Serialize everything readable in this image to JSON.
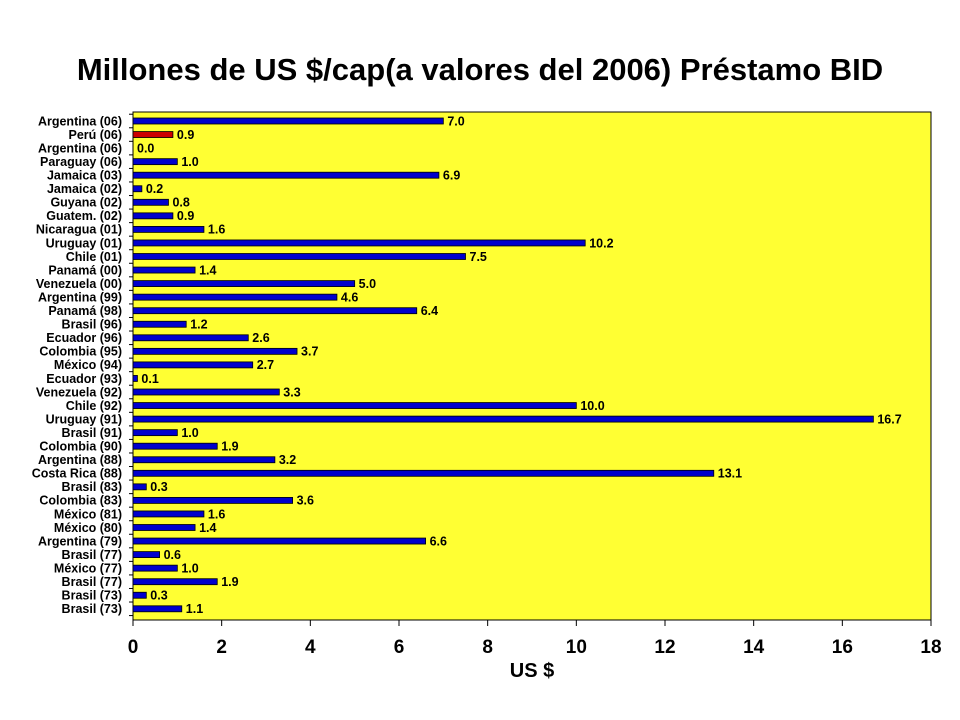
{
  "chart_data": {
    "type": "bar",
    "orientation": "horizontal",
    "title": "Millones de US $/cap(a valores del 2006) Préstamo BID",
    "xlabel": "US $",
    "ylabel": "",
    "xlim": [
      0,
      18
    ],
    "xticks": [
      "0",
      "2",
      "4",
      "6",
      "8",
      "10",
      "12",
      "14",
      "16",
      "18"
    ],
    "grid": false,
    "plot_background": "#ffff33",
    "bar_color": "#0000cc",
    "highlight_color": "#cc0000",
    "categories": [
      "Argentina (06)",
      "Perú (06)",
      "Argentina (06)",
      "Paraguay (06)",
      "Jamaica (03)",
      "Jamaica (02)",
      "Guyana (02)",
      "Guatem. (02)",
      "Nicaragua (01)",
      "Uruguay (01)",
      "Chile (01)",
      "Panamá (00)",
      "Venezuela (00)",
      "Argentina (99)",
      "Panamá (98)",
      "Brasil (96)",
      "Ecuador (96)",
      "Colombia (95)",
      "México (94)",
      "Ecuador (93)",
      "Venezuela (92)",
      "Chile (92)",
      "Uruguay (91)",
      "Brasil (91)",
      "Colombia (90)",
      "Argentina (88)",
      "Costa Rica (88)",
      "Brasil (83)",
      "Colombia (83)",
      "México (81)",
      "México (80)",
      "Argentina (79)",
      "Brasil (77)",
      "México (77)",
      "Brasil (77)",
      "Brasil (73)",
      "Brasil (73)"
    ],
    "values": [
      7.0,
      0.9,
      0.0,
      1.0,
      6.9,
      0.2,
      0.8,
      0.9,
      1.6,
      10.2,
      7.5,
      1.4,
      5.0,
      4.6,
      6.4,
      1.2,
      2.6,
      3.7,
      2.7,
      0.1,
      3.3,
      10.0,
      16.7,
      1.0,
      1.9,
      3.2,
      13.1,
      0.3,
      3.6,
      1.6,
      1.4,
      6.6,
      0.6,
      1.0,
      1.9,
      0.3,
      1.1
    ],
    "labels": [
      "7.0",
      "0.9",
      "0.0",
      "1.0",
      "6.9",
      "0.2",
      "0.8",
      "0.9",
      "1.6",
      "10.2",
      "7.5",
      "1.4",
      "5.0",
      "4.6",
      "6.4",
      "1.2",
      "2.6",
      "3.7",
      "2.7",
      "0.1",
      "3.3",
      "10.0",
      "16.7",
      "1.0",
      "1.9",
      "3.2",
      "13.1",
      "0.3",
      "3.6",
      "1.6",
      "1.4",
      "6.6",
      "0.6",
      "1.0",
      "1.9",
      "0.3",
      "1.1"
    ],
    "highlight_index": 1
  }
}
